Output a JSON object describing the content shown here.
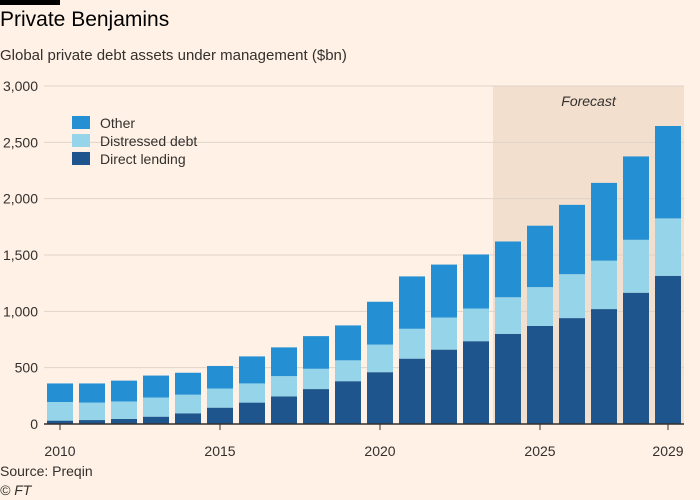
{
  "header": {
    "title": "Private Benjamins",
    "subtitle": "Global private debt assets under management ($bn)"
  },
  "footer": {
    "source": "Source: Preqin",
    "copyright": "© FT"
  },
  "colors": {
    "background": "#fff1e5",
    "forecast_band": "#f2dfce",
    "other": "#2490d3",
    "distressed": "#96d4ea",
    "direct": "#1e558c",
    "gridline": "#e0d3c7",
    "axis": "#33302e"
  },
  "chart_data": {
    "type": "bar",
    "stacked": true,
    "title": "Private Benjamins",
    "subtitle": "Global private debt assets under management ($bn)",
    "xlabel": "",
    "ylabel": "",
    "ylim": [
      0,
      3000
    ],
    "yticks": [
      0,
      500,
      1000,
      1500,
      2000,
      2500,
      3000
    ],
    "ytick_labels": [
      "0",
      "500",
      "1,000",
      "1,500",
      "2,000",
      "2,500",
      "3,000"
    ],
    "categories": [
      2010,
      2011,
      2012,
      2013,
      2014,
      2015,
      2016,
      2017,
      2018,
      2019,
      2020,
      2021,
      2022,
      2023,
      2024,
      2025,
      2026,
      2027,
      2028,
      2029
    ],
    "xtick_labels": [
      "2010",
      "2015",
      "2020",
      "2025",
      "2029"
    ],
    "xtick_values": [
      2010,
      2015,
      2020,
      2025,
      2029
    ],
    "forecast_start": 2024,
    "forecast_label": "Forecast",
    "series": [
      {
        "name": "Direct lending",
        "color_key": "direct",
        "values": [
          30,
          35,
          45,
          65,
          95,
          145,
          190,
          245,
          310,
          380,
          460,
          580,
          660,
          735,
          800,
          870,
          940,
          1020,
          1165,
          1315
        ]
      },
      {
        "name": "Distressed debt",
        "color_key": "distressed",
        "values": [
          165,
          155,
          155,
          170,
          165,
          170,
          170,
          180,
          180,
          185,
          245,
          265,
          285,
          290,
          325,
          345,
          390,
          430,
          470,
          510
        ]
      },
      {
        "name": "Other",
        "color_key": "other",
        "values": [
          165,
          170,
          185,
          195,
          195,
          200,
          240,
          255,
          290,
          310,
          380,
          465,
          470,
          480,
          495,
          545,
          615,
          690,
          740,
          820
        ]
      }
    ],
    "legend": {
      "position": "top-left",
      "order": [
        "Other",
        "Distressed debt",
        "Direct lending"
      ]
    }
  }
}
